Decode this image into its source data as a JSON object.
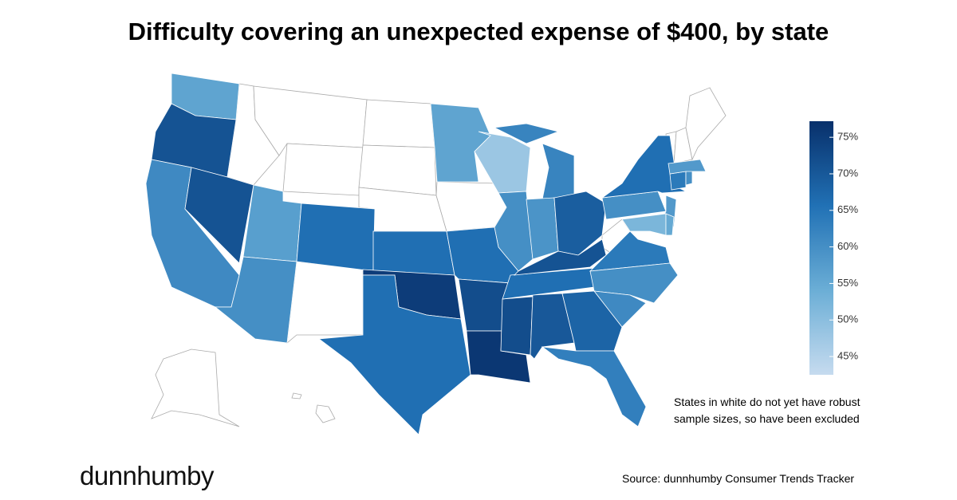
{
  "chart_data": {
    "type": "choropleth",
    "title": "Difficulty covering an unexpected expense of $400, by state",
    "values": [
      56,
      71,
      61,
      71,
      57,
      60,
      66,
      66,
      75,
      66,
      56,
      48,
      62,
      60,
      59,
      69,
      66,
      72,
      76,
      72,
      70,
      68,
      63,
      66,
      71,
      64,
      60,
      61,
      60,
      66,
      58,
      52,
      55,
      64,
      60,
      58
    ],
    "colors": [
      "#c6dbef",
      "#6baed6",
      "#2171b5",
      "#08306b"
    ],
    "ylim": [
      42.5,
      77.2
    ],
    "yticks": [
      {
        "value": 45,
        "label": "45%"
      },
      {
        "value": 50,
        "label": "50%"
      },
      {
        "value": 55,
        "label": "55%"
      },
      {
        "value": 60,
        "label": "60%"
      },
      {
        "value": 65,
        "label": "65%"
      },
      {
        "value": 70,
        "label": "70%"
      },
      {
        "value": 75,
        "label": "75%"
      }
    ],
    "legend": "right",
    "annotation": "States in white do not yet have robust sample sizes, so have been excluded",
    "source": "Source: dunnhumby Consumer Trends Tracker",
    "brand": "dunnhumby"
  }
}
